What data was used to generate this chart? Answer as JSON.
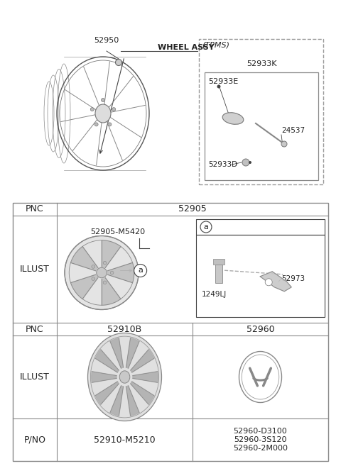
{
  "bg_color": "#ffffff",
  "border_color": "#444444",
  "text_color": "#222222",
  "line_color": "#666666",
  "top": {
    "wheel_assy_label": "WHEEL ASSY",
    "part_52950": "52950",
    "tpms_label": "(TPMS)",
    "part_52933K": "52933K",
    "part_52933E": "52933E",
    "part_24537": "24537",
    "part_52933D": "52933D"
  },
  "row1_pnc": "52905",
  "row1_part": "52905-M5420",
  "row1_callout": "a",
  "row1_1249LJ": "1249LJ",
  "row1_52973": "52973",
  "row2_pnc_left": "52910B",
  "row2_pnc_right": "52960",
  "row2_pno_left": "52910-M5210",
  "row2_pno_right": [
    "52960-2M000",
    "52960-3S120",
    "52960-D3100"
  ],
  "label_pnc": "PNC",
  "label_illust": "ILLUST",
  "label_pno": "P/NO",
  "fig_w": 4.8,
  "fig_h": 6.57,
  "dpi": 100
}
